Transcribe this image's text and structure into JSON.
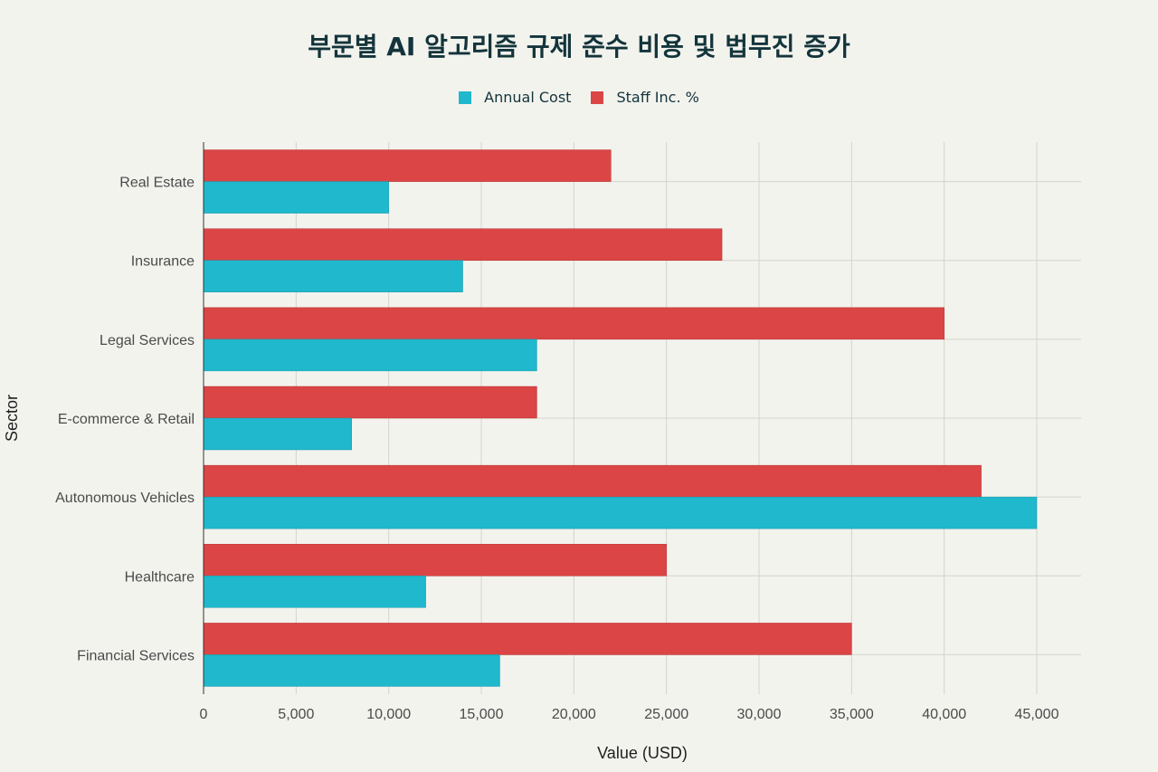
{
  "chart_data": {
    "type": "bar",
    "orientation": "horizontal",
    "title": "부문별 AI 알고리즘 규제 준수 비용 및 법무진 증가",
    "xlabel": "Value (USD)",
    "ylabel": "Sector",
    "categories": [
      "Financial Services",
      "Healthcare",
      "Autonomous Vehicles",
      "E-commerce & Retail",
      "Legal Services",
      "Insurance",
      "Real Estate"
    ],
    "series": [
      {
        "name": "Annual Cost",
        "color": "#1fb8cd",
        "values": [
          16000,
          12000,
          45000,
          8000,
          18000,
          14000,
          10000
        ]
      },
      {
        "name": "Staff Inc. %",
        "color": "#db4545",
        "values": [
          35000,
          25000,
          42000,
          18000,
          40000,
          28000,
          22000
        ]
      }
    ],
    "xlim": [
      0,
      47500
    ],
    "xticks": [
      0,
      5000,
      10000,
      15000,
      20000,
      25000,
      30000,
      35000,
      40000,
      45000
    ],
    "xtick_labels": [
      "0",
      "5,000",
      "10,000",
      "15,000",
      "20,000",
      "25,000",
      "30,000",
      "35,000",
      "40,000",
      "45,000"
    ],
    "grid": true,
    "legend_position": "top-center"
  }
}
